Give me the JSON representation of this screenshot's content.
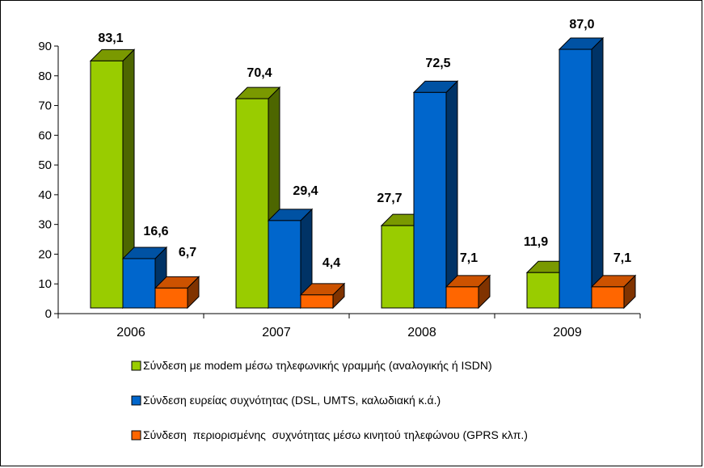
{
  "chart_data": {
    "type": "bar",
    "categories": [
      "2006",
      "2007",
      "2008",
      "2009"
    ],
    "series": [
      {
        "name": "Σύνδεση με modem μέσω τηλεφωνικής γραμμής (αναλογικής ή ISDN)",
        "values": [
          83.1,
          70.4,
          27.7,
          11.9
        ],
        "labels": [
          "83,1",
          "70,4",
          "27,7",
          "11,9"
        ],
        "color": "#99CC00",
        "side_color": "#4D6600",
        "top_color": "#7A9900"
      },
      {
        "name": "Σύνδεση ευρείας συχνότητας (DSL, UMTS, καλωδιακή κ.ά.)",
        "values": [
          16.6,
          29.4,
          72.5,
          87.0
        ],
        "labels": [
          "16,6",
          "29,4",
          "72,5",
          "87,0"
        ],
        "color": "#0066CC",
        "side_color": "#003366",
        "top_color": "#0052A3"
      },
      {
        "name": "Σύνδεση  περιορισμένης  συχνότητας μέσω κινητού τηλεφώνου (GPRS κλπ.)",
        "values": [
          6.7,
          4.4,
          7.1,
          7.1
        ],
        "labels": [
          "6,7",
          "4,4",
          "7,1",
          "7,1"
        ],
        "color": "#FF6600",
        "side_color": "#803300",
        "top_color": "#CC5200"
      }
    ],
    "ylim": [
      0,
      90
    ],
    "yticks": [
      "0",
      "10",
      "20",
      "30",
      "40",
      "50",
      "60",
      "70",
      "80",
      "90"
    ],
    "grid": false,
    "legend_position": "bottom",
    "three_d": true
  }
}
